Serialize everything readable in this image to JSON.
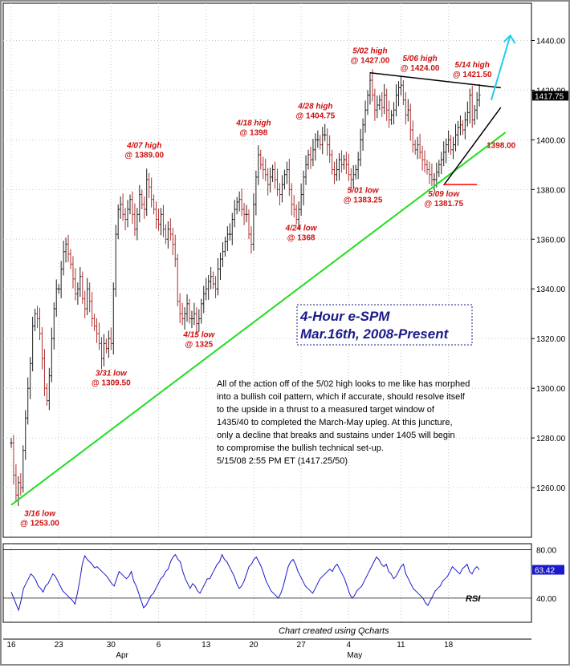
{
  "chart_data": [
    {
      "type": "candlestick",
      "title": "4-Hour e-SPM",
      "subtitle": "Mar.16th, 2008-Present",
      "ylim": [
        1240,
        1455
      ],
      "y_ticks": [
        "1260.00",
        "1280.00",
        "1300.00",
        "1320.00",
        "1340.00",
        "1360.00",
        "1380.00",
        "1400.00",
        "1420.00",
        "1440.00"
      ],
      "last_price_label": "1417.75",
      "x_ticks": [
        "16",
        "23",
        "30",
        "6",
        "13",
        "20",
        "27",
        "4",
        "11",
        "18"
      ],
      "month_labels": [
        "Apr",
        "May"
      ],
      "price_path": [
        [
          0,
          1278
        ],
        [
          0.5,
          1265
        ],
        [
          1,
          1257
        ],
        [
          1.5,
          1262
        ],
        [
          2,
          1260
        ],
        [
          2.5,
          1275
        ],
        [
          3,
          1288
        ],
        [
          3.5,
          1300
        ],
        [
          4,
          1310
        ],
        [
          4.5,
          1325
        ],
        [
          5,
          1330
        ],
        [
          5.5,
          1328
        ],
        [
          6,
          1322
        ],
        [
          6.5,
          1312
        ],
        [
          7,
          1300
        ],
        [
          7.5,
          1295
        ],
        [
          8,
          1305
        ],
        [
          8.5,
          1320
        ],
        [
          9,
          1332
        ],
        [
          9.5,
          1340
        ],
        [
          10,
          1340
        ],
        [
          10.5,
          1348
        ],
        [
          11,
          1355
        ],
        [
          11.5,
          1358
        ],
        [
          12,
          1354
        ],
        [
          12.5,
          1350
        ],
        [
          13,
          1344
        ],
        [
          13.5,
          1338
        ],
        [
          14,
          1340
        ],
        [
          14.5,
          1345
        ],
        [
          15,
          1336
        ],
        [
          15.5,
          1332
        ],
        [
          16,
          1340
        ],
        [
          16.5,
          1335
        ],
        [
          17,
          1328
        ],
        [
          17.5,
          1325
        ],
        [
          18,
          1322
        ],
        [
          18.5,
          1318
        ],
        [
          19,
          1312
        ],
        [
          19.5,
          1318
        ],
        [
          20,
          1316
        ],
        [
          20.5,
          1320
        ],
        [
          21,
          1318
        ],
        [
          21.5,
          1340
        ],
        [
          22,
          1362
        ],
        [
          22.5,
          1372
        ],
        [
          23,
          1374
        ],
        [
          23.5,
          1370
        ],
        [
          24,
          1368
        ],
        [
          24.5,
          1372
        ],
        [
          25,
          1376
        ],
        [
          25.5,
          1370
        ],
        [
          26,
          1364
        ],
        [
          26.5,
          1370
        ],
        [
          27,
          1378
        ],
        [
          27.5,
          1374
        ],
        [
          28,
          1372
        ],
        [
          28.5,
          1384
        ],
        [
          29,
          1381
        ],
        [
          29.5,
          1376
        ],
        [
          30,
          1372
        ],
        [
          30.5,
          1368
        ],
        [
          31,
          1366
        ],
        [
          31.5,
          1370
        ],
        [
          32,
          1364
        ],
        [
          32.5,
          1360
        ],
        [
          33,
          1364
        ],
        [
          33.5,
          1362
        ],
        [
          34,
          1358
        ],
        [
          34.5,
          1352
        ],
        [
          35,
          1335
        ],
        [
          35.5,
          1330
        ],
        [
          36,
          1328
        ],
        [
          36.5,
          1330
        ],
        [
          37,
          1334
        ],
        [
          37.5,
          1328
        ],
        [
          38,
          1328
        ],
        [
          38.5,
          1330
        ],
        [
          39,
          1326
        ],
        [
          39.5,
          1328
        ],
        [
          40,
          1334
        ],
        [
          40.5,
          1338
        ],
        [
          41,
          1340
        ],
        [
          41.5,
          1343
        ],
        [
          42,
          1345
        ],
        [
          42.5,
          1342
        ],
        [
          43,
          1340
        ],
        [
          43.5,
          1348
        ],
        [
          44,
          1352
        ],
        [
          44.5,
          1355
        ],
        [
          45,
          1359
        ],
        [
          45.5,
          1362
        ],
        [
          46,
          1362
        ],
        [
          46.5,
          1368
        ],
        [
          47,
          1372
        ],
        [
          47.5,
          1375
        ],
        [
          48,
          1376
        ],
        [
          48.5,
          1372
        ],
        [
          49,
          1370
        ],
        [
          49.5,
          1370
        ],
        [
          50,
          1362
        ],
        [
          50.5,
          1358
        ],
        [
          51,
          1374
        ],
        [
          51.5,
          1385
        ],
        [
          52,
          1394
        ],
        [
          52.5,
          1390
        ],
        [
          53,
          1388
        ],
        [
          53.5,
          1386
        ],
        [
          54,
          1382
        ],
        [
          54.5,
          1385
        ],
        [
          55,
          1388
        ],
        [
          55.5,
          1384
        ],
        [
          56,
          1380
        ],
        [
          56.5,
          1378
        ],
        [
          57,
          1382
        ],
        [
          57.5,
          1386
        ],
        [
          58,
          1388
        ],
        [
          58.5,
          1380
        ],
        [
          59,
          1374
        ],
        [
          59.5,
          1372
        ],
        [
          60,
          1368
        ],
        [
          60.5,
          1372
        ],
        [
          61,
          1378
        ],
        [
          61.5,
          1385
        ],
        [
          62,
          1390
        ],
        [
          62.5,
          1394
        ],
        [
          63,
          1392
        ],
        [
          63.5,
          1396
        ],
        [
          64,
          1400
        ],
        [
          64.5,
          1400
        ],
        [
          65,
          1398
        ],
        [
          65.5,
          1402
        ],
        [
          66,
          1402
        ],
        [
          66.5,
          1398
        ],
        [
          67,
          1394
        ],
        [
          67.5,
          1388
        ],
        [
          68,
          1386
        ],
        [
          68.5,
          1388
        ],
        [
          69,
          1392
        ],
        [
          69.5,
          1390
        ],
        [
          70,
          1392
        ],
        [
          70.5,
          1390
        ],
        [
          71,
          1386
        ],
        [
          71.5,
          1384
        ],
        [
          72,
          1386
        ],
        [
          72.5,
          1388
        ],
        [
          73,
          1392
        ],
        [
          73.5,
          1400
        ],
        [
          74,
          1406
        ],
        [
          74.5,
          1412
        ],
        [
          75,
          1418
        ],
        [
          75.5,
          1424
        ],
        [
          76,
          1418
        ],
        [
          76.5,
          1412
        ],
        [
          77,
          1414
        ],
        [
          77.5,
          1416
        ],
        [
          78,
          1413
        ],
        [
          78.5,
          1418
        ],
        [
          79,
          1412
        ],
        [
          79.5,
          1408
        ],
        [
          80,
          1410
        ],
        [
          80.5,
          1412
        ],
        [
          81,
          1418
        ],
        [
          81.5,
          1421
        ],
        [
          82,
          1422
        ],
        [
          82.5,
          1416
        ],
        [
          83,
          1410
        ],
        [
          83.5,
          1412
        ],
        [
          84,
          1404
        ],
        [
          84.5,
          1398
        ],
        [
          85,
          1396
        ],
        [
          85.5,
          1398
        ],
        [
          86,
          1395
        ],
        [
          86.5,
          1392
        ],
        [
          87,
          1390
        ],
        [
          87.5,
          1388
        ],
        [
          88,
          1386
        ],
        [
          88.5,
          1384
        ],
        [
          89,
          1384
        ],
        [
          89.5,
          1387
        ],
        [
          90,
          1390
        ],
        [
          90.5,
          1392
        ],
        [
          91,
          1395
        ],
        [
          91.5,
          1398
        ],
        [
          92,
          1400
        ],
        [
          92.5,
          1396
        ],
        [
          93,
          1398
        ],
        [
          93.5,
          1402
        ],
        [
          94,
          1405
        ],
        [
          94.5,
          1406
        ],
        [
          95,
          1404
        ],
        [
          95.5,
          1408
        ],
        [
          96,
          1411
        ],
        [
          96.5,
          1418
        ],
        [
          97,
          1408
        ],
        [
          97.5,
          1412
        ],
        [
          98,
          1416
        ],
        [
          98.5,
          1418
        ]
      ],
      "annotations": [
        {
          "text": [
            "3/16 low",
            "@ 1253.00"
          ],
          "x": 6,
          "y": 1253
        },
        {
          "text": [
            "3/31 low",
            "@ 1309.50"
          ],
          "x": 21,
          "y": 1309.5
        },
        {
          "text": [
            "4/07 high",
            "@ 1389.00"
          ],
          "x": 28,
          "y": 1389
        },
        {
          "text": [
            "4/15 low",
            "@ 1325"
          ],
          "x": 39.5,
          "y": 1325
        },
        {
          "text": [
            "4/18 high",
            "@ 1398"
          ],
          "x": 51,
          "y": 1398
        },
        {
          "text": [
            "4/24 low",
            "@ 1368"
          ],
          "x": 61,
          "y": 1368
        },
        {
          "text": [
            "4/28 high",
            "@ 1404.75"
          ],
          "x": 64,
          "y": 1404.75
        },
        {
          "text": [
            "5/01 low",
            "@ 1383.25"
          ],
          "x": 74,
          "y": 1383.25
        },
        {
          "text": [
            "5/02 high",
            "@ 1427.00"
          ],
          "x": 75.5,
          "y": 1427
        },
        {
          "text": [
            "5/06 high",
            "@ 1424.00"
          ],
          "x": 86,
          "y": 1424
        },
        {
          "text": [
            "5/09 low",
            "@ 1381.75"
          ],
          "x": 91,
          "y": 1381.75
        },
        {
          "text": [
            "5/14 high",
            "@ 1421.50"
          ],
          "x": 97,
          "y": 1421.5
        },
        {
          "text": [
            "1398.00"
          ],
          "x": 99,
          "y": 1398
        }
      ],
      "legend_box": [
        "4-Hour e-SPM",
        "Mar.16th, 2008-Present"
      ],
      "commentary": [
        "All of the action off of the 5/02 high looks to me like has morphed",
        "into a bullish coil pattern, which if accurate, should resolve itself",
        "to the upside in a thrust to a measured target window of",
        "1435/40 to completed the March-May upleg. At this juncture,",
        "only a decline that breaks and sustains under 1405 will begin",
        "to compromise the bullish technical set-up.",
        "5/15/08  2:55 PM ET  (1417.25/50)"
      ],
      "trendlines": [
        {
          "name": "support",
          "from": [
            0,
            1253
          ],
          "to": [
            104,
            1403
          ],
          "color": "#22dd22"
        },
        {
          "name": "coil-top",
          "from": [
            75.5,
            1427
          ],
          "to": [
            103,
            1421
          ],
          "color": "#000000"
        },
        {
          "name": "coil-bottom",
          "from": [
            91,
            1381.75
          ],
          "to": [
            103,
            1413
          ],
          "color": "#000000"
        },
        {
          "name": "low-mark",
          "from": [
            91,
            1382
          ],
          "to": [
            98,
            1382
          ],
          "color": "#ff0000"
        },
        {
          "name": "target-arrow",
          "from": [
            101,
            1416
          ],
          "to": [
            105,
            1442
          ],
          "color": "#22ccee"
        }
      ]
    },
    {
      "type": "line",
      "name": "RSI",
      "ylim": [
        20,
        85
      ],
      "y_ticks": [
        "80.00",
        "40.00"
      ],
      "last_value_label": "63.42",
      "label": "RSI",
      "values": [
        45,
        40,
        35,
        30,
        38,
        48,
        52,
        56,
        60,
        58,
        55,
        50,
        48,
        45,
        50,
        52,
        56,
        60,
        58,
        54,
        50,
        46,
        44,
        42,
        40,
        38,
        35,
        44,
        55,
        68,
        75,
        72,
        70,
        68,
        65,
        66,
        64,
        62,
        60,
        58,
        55,
        52,
        50,
        56,
        62,
        60,
        58,
        56,
        58,
        62,
        54,
        50,
        44,
        38,
        32,
        34,
        38,
        42,
        44,
        48,
        52,
        56,
        58,
        62,
        64,
        70,
        74,
        76,
        72,
        70,
        62,
        56,
        52,
        48,
        52,
        50,
        46,
        44,
        48,
        52,
        56,
        56,
        60,
        64,
        68,
        70,
        76,
        72,
        70,
        66,
        62,
        58,
        52,
        48,
        50,
        54,
        60,
        66,
        68,
        72,
        74,
        70,
        66,
        60,
        54,
        50,
        46,
        44,
        42,
        40,
        44,
        50,
        58,
        66,
        70,
        72,
        68,
        62,
        58,
        54,
        50,
        48,
        46,
        44,
        48,
        52,
        56,
        58,
        60,
        62,
        64,
        62,
        66,
        68,
        64,
        60,
        56,
        50,
        44,
        40,
        42,
        46,
        48,
        50,
        54,
        58,
        62,
        66,
        70,
        74,
        72,
        68,
        66,
        68,
        62,
        60,
        56,
        58,
        62,
        66,
        68,
        60,
        56,
        52,
        48,
        46,
        44,
        42,
        40,
        36,
        34,
        38,
        42,
        46,
        48,
        50,
        54,
        56,
        58,
        62,
        66,
        64,
        62,
        60,
        64,
        66,
        68,
        62,
        60,
        64,
        66,
        63.42
      ]
    }
  ],
  "footer": {
    "credit": "Chart created using Qcharts"
  }
}
